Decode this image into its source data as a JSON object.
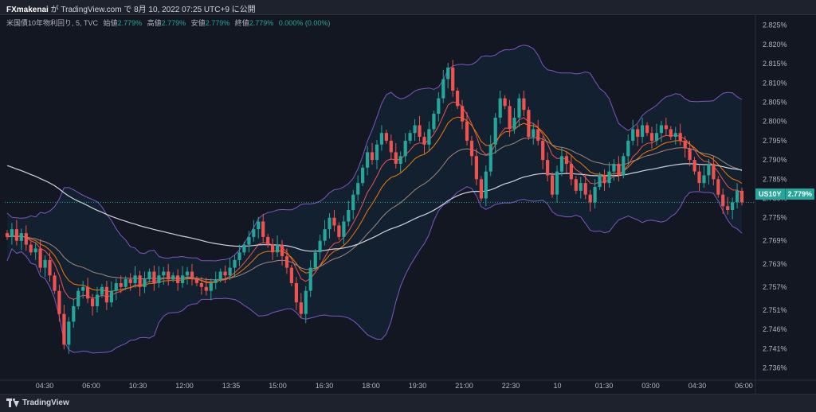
{
  "header": {
    "author": "FXmakenai",
    "text": "が TradingView.com で 8月 10, 2022 07:25 UTC+9 に公開"
  },
  "legend": {
    "symbol": "米国債10年物利回り, 5, TVC",
    "open_label": "始値",
    "open": "2.779%",
    "high_label": "高値",
    "high": "2.779%",
    "low_label": "安値",
    "low": "2.779%",
    "close_label": "終値",
    "close": "2.779%",
    "change": "0.000% (0.00%)"
  },
  "price_tag": {
    "symbol": "US10Y",
    "price": "2.779%"
  },
  "footer": {
    "brand": "TradingView"
  },
  "colors": {
    "up": "#26a69a",
    "down": "#ef5350",
    "background": "#131722",
    "band": "#7e57c2"
  },
  "chart_data": {
    "type": "candlestick",
    "y_ticks": [
      "2.825%",
      "2.820%",
      "2.815%",
      "2.810%",
      "2.805%",
      "2.800%",
      "2.795%",
      "2.790%",
      "2.785%",
      "2.780%",
      "2.775%",
      "2.769%",
      "2.763%",
      "2.757%",
      "2.751%",
      "2.746%",
      "2.741%",
      "2.736%"
    ],
    "x_ticks": [
      "04:30",
      "06:00",
      "10:30",
      "12:00",
      "13:35",
      "15:00",
      "16:30",
      "18:00",
      "19:30",
      "21:00",
      "22:30",
      "10",
      "01:30",
      "03:00",
      "04:30",
      "06:00"
    ],
    "ylim": [
      2.733,
      2.827
    ],
    "last_price": 2.779,
    "candles_close": [
      2.77,
      2.772,
      2.769,
      2.771,
      2.768,
      2.766,
      2.767,
      2.762,
      2.764,
      2.76,
      2.756,
      2.75,
      2.742,
      2.748,
      2.752,
      2.756,
      2.757,
      2.754,
      2.752,
      2.755,
      2.757,
      2.753,
      2.756,
      2.758,
      2.757,
      2.759,
      2.758,
      2.76,
      2.757,
      2.759,
      2.761,
      2.758,
      2.76,
      2.761,
      2.759,
      2.76,
      2.758,
      2.76,
      2.761,
      2.759,
      2.758,
      2.757,
      2.756,
      2.758,
      2.759,
      2.761,
      2.76,
      2.762,
      2.764,
      2.766,
      2.768,
      2.77,
      2.772,
      2.774,
      2.77,
      2.768,
      2.766,
      2.768,
      2.765,
      2.762,
      2.758,
      2.753,
      2.75,
      2.756,
      2.762,
      2.766,
      2.769,
      2.772,
      2.775,
      2.773,
      2.77,
      2.774,
      2.777,
      2.781,
      2.784,
      2.788,
      2.792,
      2.79,
      2.794,
      2.797,
      2.795,
      2.792,
      2.789,
      2.791,
      2.795,
      2.797,
      2.799,
      2.796,
      2.794,
      2.798,
      2.802,
      2.806,
      2.811,
      2.814,
      2.808,
      2.804,
      2.8,
      2.795,
      2.791,
      2.785,
      2.78,
      2.787,
      2.794,
      2.801,
      2.806,
      2.804,
      2.798,
      2.801,
      2.806,
      2.803,
      2.796,
      2.798,
      2.795,
      2.79,
      2.786,
      2.781,
      2.787,
      2.791,
      2.789,
      2.785,
      2.782,
      2.784,
      2.781,
      2.779,
      2.783,
      2.786,
      2.784,
      2.787,
      2.789,
      2.786,
      2.791,
      2.795,
      2.798,
      2.796,
      2.799,
      2.797,
      2.795,
      2.797,
      2.799,
      2.798,
      2.796,
      2.797,
      2.795,
      2.793,
      2.79,
      2.787,
      2.784,
      2.786,
      2.789,
      2.785,
      2.781,
      2.778,
      2.777,
      2.779,
      2.782,
      2.779
    ]
  }
}
